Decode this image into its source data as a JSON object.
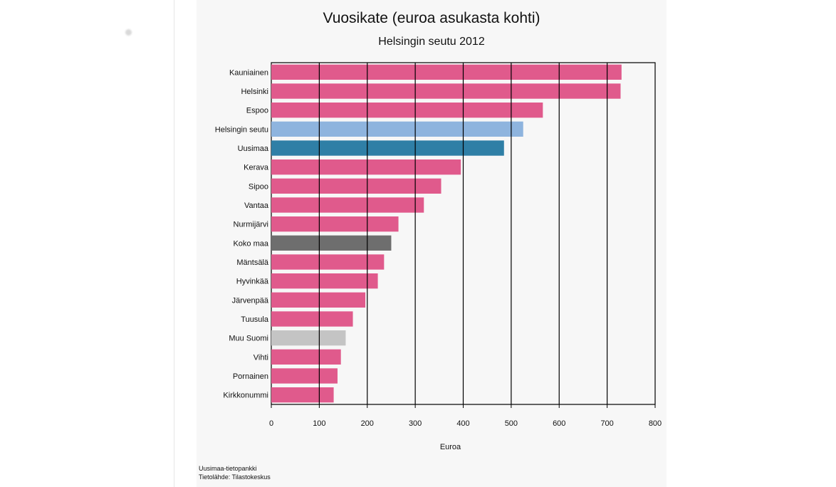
{
  "chart_data": {
    "type": "bar",
    "orientation": "horizontal",
    "title": "Vuosikate (euroa asukasta kohti)",
    "subtitle": "Helsingin seutu 2012",
    "xlabel": "Euroa",
    "ylabel": "",
    "xlim": [
      0,
      800
    ],
    "xticks": [
      "0",
      "100",
      "200",
      "300",
      "400",
      "500",
      "600",
      "700",
      "800"
    ],
    "grid": "vertical",
    "legend": "none",
    "categories": [
      "Kauniainen",
      "Helsinki",
      "Espoo",
      "Helsingin seutu",
      "Uusimaa",
      "Kerava",
      "Sipoo",
      "Vantaa",
      "Nurmijärvi",
      "Koko maa",
      "Mäntsälä",
      "Hyvinkää",
      "Järvenpää",
      "Tuusula",
      "Muu Suomi",
      "Vihti",
      "Pornainen",
      "Kirkkonummi"
    ],
    "values": [
      730,
      728,
      566,
      525,
      485,
      395,
      354,
      318,
      265,
      250,
      235,
      222,
      196,
      170,
      155,
      145,
      138,
      130
    ],
    "colors": [
      "#e05a8c",
      "#e05a8c",
      "#e05a8c",
      "#8eb4de",
      "#2f7fa6",
      "#e05a8c",
      "#e05a8c",
      "#e05a8c",
      "#e05a8c",
      "#6e6e6e",
      "#e05a8c",
      "#e05a8c",
      "#e05a8c",
      "#e05a8c",
      "#c4c4c4",
      "#e05a8c",
      "#e05a8c",
      "#e05a8c"
    ]
  },
  "source": {
    "line1": "Uusimaa-tietopankki",
    "line2": "Tietolähde: Tilastokeskus"
  }
}
